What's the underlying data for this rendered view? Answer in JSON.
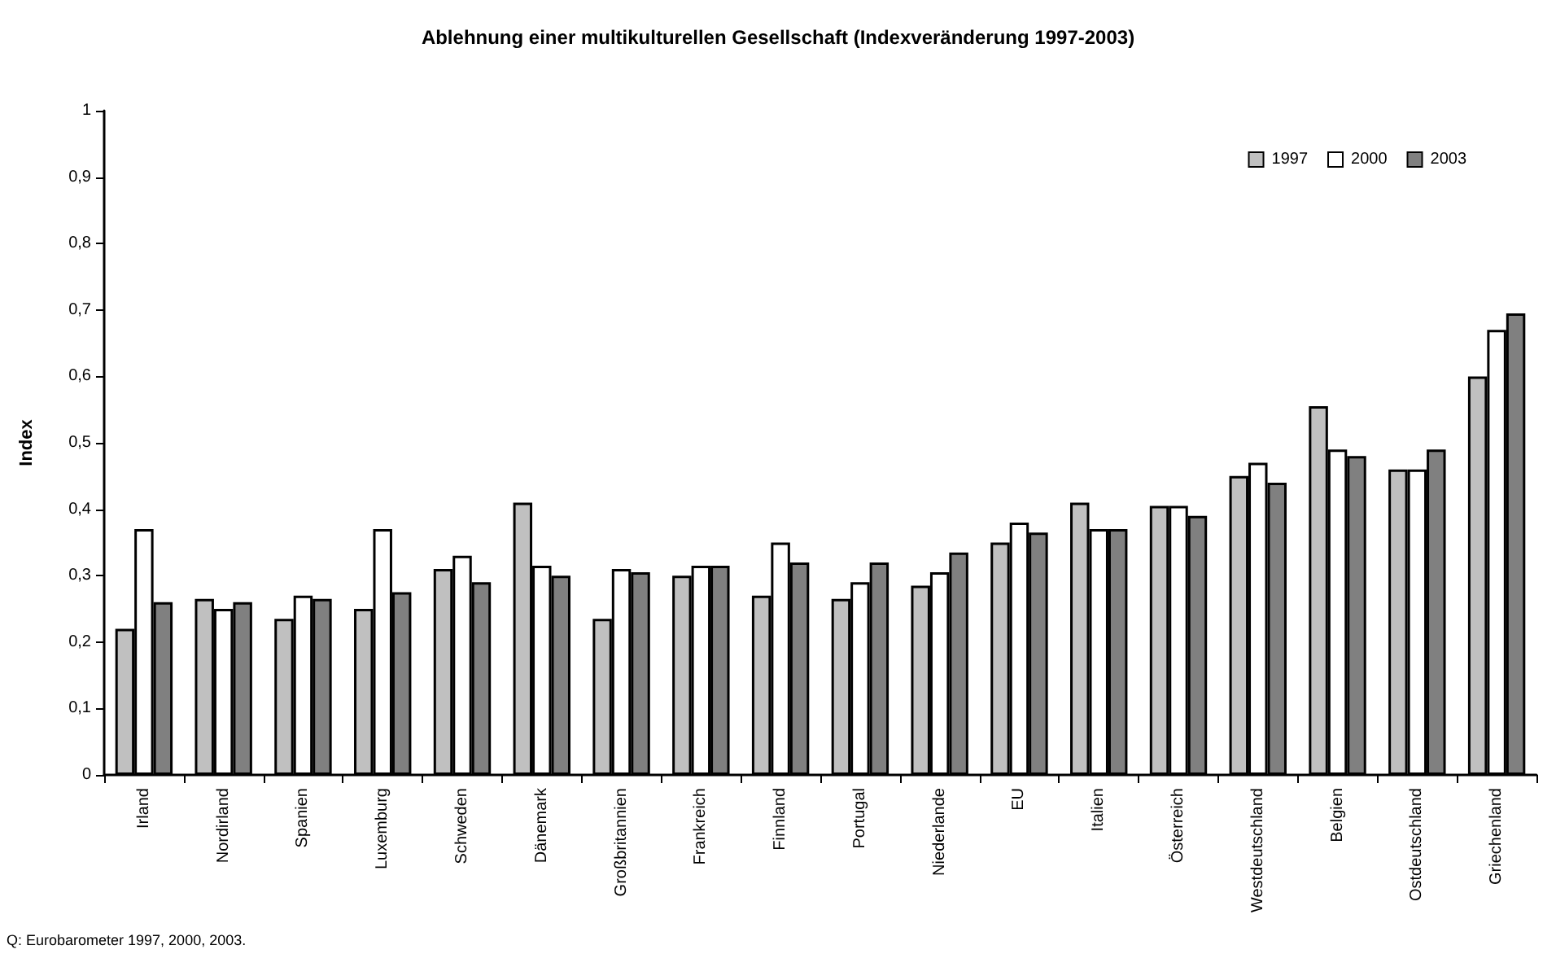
{
  "chart_data": {
    "type": "bar",
    "title": "Ablehnung einer multikulturellen Gesellschaft (Indexveränderung 1997-2003)",
    "ylabel": "Index",
    "categories": [
      "Irland",
      "Nordirland",
      "Spanien",
      "Luxemburg",
      "Schweden",
      "Dänemark",
      "Großbritannien",
      "Frankreich",
      "Finnland",
      "Portugal",
      "Niederlande",
      "EU",
      "Italien",
      "Österreich",
      "Westdeutschland",
      "Belgien",
      "Ostdeutschland",
      "Griechenland"
    ],
    "series": [
      {
        "name": "1997",
        "color": "#c0c0c0",
        "values": [
          0.22,
          0.265,
          0.235,
          0.25,
          0.31,
          0.41,
          0.235,
          0.3,
          0.27,
          0.265,
          0.285,
          0.35,
          0.41,
          0.405,
          0.45,
          0.555,
          0.46,
          0.6
        ]
      },
      {
        "name": "2000",
        "color": "#ffffff",
        "values": [
          0.37,
          0.25,
          0.27,
          0.37,
          0.33,
          0.315,
          0.31,
          0.315,
          0.35,
          0.29,
          0.305,
          0.38,
          0.37,
          0.405,
          0.47,
          0.49,
          0.46,
          0.67
        ]
      },
      {
        "name": "2003",
        "color": "#808080",
        "values": [
          0.26,
          0.26,
          0.265,
          0.275,
          0.29,
          0.3,
          0.305,
          0.315,
          0.32,
          0.32,
          0.335,
          0.365,
          0.37,
          0.39,
          0.44,
          0.48,
          0.49,
          0.695
        ]
      }
    ],
    "ylim": [
      0,
      1
    ],
    "yticks": [
      {
        "value": 0,
        "label": "0"
      },
      {
        "value": 0.1,
        "label": "0,1"
      },
      {
        "value": 0.2,
        "label": "0,2"
      },
      {
        "value": 0.3,
        "label": "0,3"
      },
      {
        "value": 0.4,
        "label": "0,4"
      },
      {
        "value": 0.5,
        "label": "0,5"
      },
      {
        "value": 0.6,
        "label": "0,6"
      },
      {
        "value": 0.7,
        "label": "0,7"
      },
      {
        "value": 0.8,
        "label": "0,8"
      },
      {
        "value": 0.9,
        "label": "0,9"
      },
      {
        "value": 1,
        "label": "1"
      }
    ],
    "grid": false,
    "legend": "top right",
    "annotations": [
      "Q: Eurobarometer 1997, 2000, 2003."
    ]
  }
}
